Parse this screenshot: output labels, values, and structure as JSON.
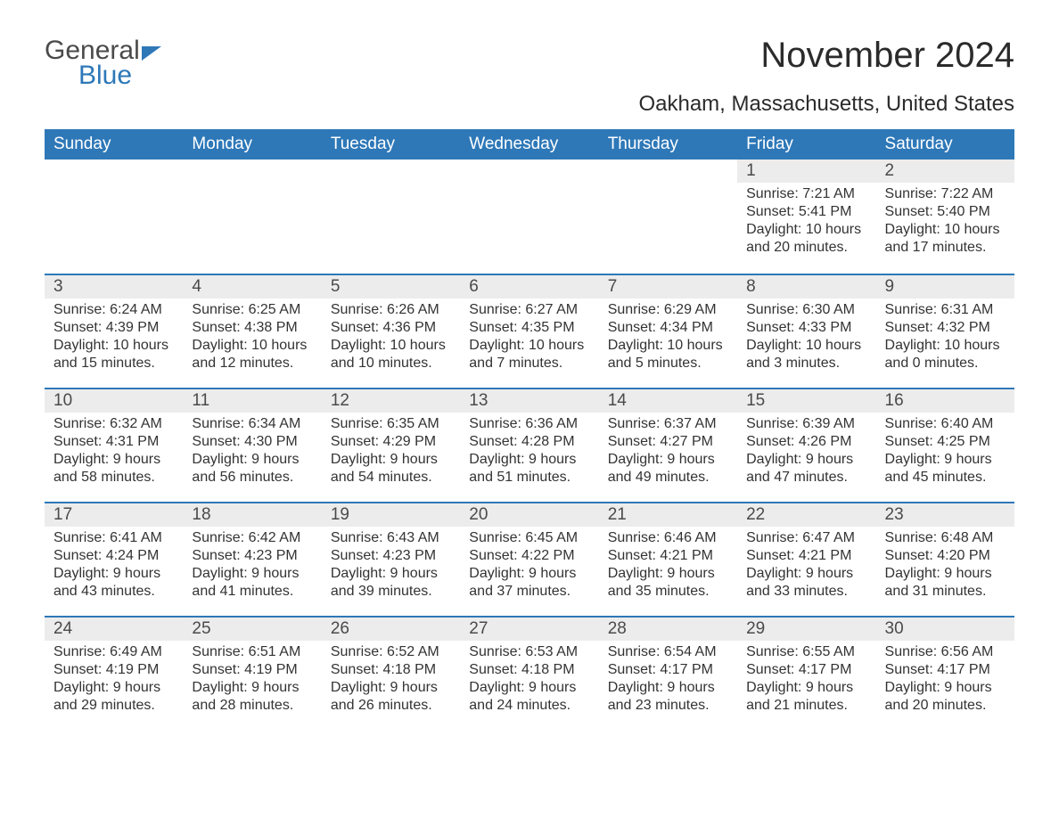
{
  "brand": {
    "word1": "General",
    "word2": "Blue"
  },
  "title": "November 2024",
  "location": "Oakham, Massachusetts, United States",
  "colors": {
    "accent": "#2e78b8",
    "header_text": "#ffffff",
    "daynum_bg": "#ececec",
    "body_text": "#333333",
    "page_bg": "#ffffff"
  },
  "weekdays": [
    "Sunday",
    "Monday",
    "Tuesday",
    "Wednesday",
    "Thursday",
    "Friday",
    "Saturday"
  ],
  "weeks": [
    [
      null,
      null,
      null,
      null,
      null,
      {
        "n": "1",
        "sunrise": "7:21 AM",
        "sunset": "5:41 PM",
        "daylight": "10 hours and 20 minutes."
      },
      {
        "n": "2",
        "sunrise": "7:22 AM",
        "sunset": "5:40 PM",
        "daylight": "10 hours and 17 minutes."
      }
    ],
    [
      {
        "n": "3",
        "sunrise": "6:24 AM",
        "sunset": "4:39 PM",
        "daylight": "10 hours and 15 minutes."
      },
      {
        "n": "4",
        "sunrise": "6:25 AM",
        "sunset": "4:38 PM",
        "daylight": "10 hours and 12 minutes."
      },
      {
        "n": "5",
        "sunrise": "6:26 AM",
        "sunset": "4:36 PM",
        "daylight": "10 hours and 10 minutes."
      },
      {
        "n": "6",
        "sunrise": "6:27 AM",
        "sunset": "4:35 PM",
        "daylight": "10 hours and 7 minutes."
      },
      {
        "n": "7",
        "sunrise": "6:29 AM",
        "sunset": "4:34 PM",
        "daylight": "10 hours and 5 minutes."
      },
      {
        "n": "8",
        "sunrise": "6:30 AM",
        "sunset": "4:33 PM",
        "daylight": "10 hours and 3 minutes."
      },
      {
        "n": "9",
        "sunrise": "6:31 AM",
        "sunset": "4:32 PM",
        "daylight": "10 hours and 0 minutes."
      }
    ],
    [
      {
        "n": "10",
        "sunrise": "6:32 AM",
        "sunset": "4:31 PM",
        "daylight": "9 hours and 58 minutes."
      },
      {
        "n": "11",
        "sunrise": "6:34 AM",
        "sunset": "4:30 PM",
        "daylight": "9 hours and 56 minutes."
      },
      {
        "n": "12",
        "sunrise": "6:35 AM",
        "sunset": "4:29 PM",
        "daylight": "9 hours and 54 minutes."
      },
      {
        "n": "13",
        "sunrise": "6:36 AM",
        "sunset": "4:28 PM",
        "daylight": "9 hours and 51 minutes."
      },
      {
        "n": "14",
        "sunrise": "6:37 AM",
        "sunset": "4:27 PM",
        "daylight": "9 hours and 49 minutes."
      },
      {
        "n": "15",
        "sunrise": "6:39 AM",
        "sunset": "4:26 PM",
        "daylight": "9 hours and 47 minutes."
      },
      {
        "n": "16",
        "sunrise": "6:40 AM",
        "sunset": "4:25 PM",
        "daylight": "9 hours and 45 minutes."
      }
    ],
    [
      {
        "n": "17",
        "sunrise": "6:41 AM",
        "sunset": "4:24 PM",
        "daylight": "9 hours and 43 minutes."
      },
      {
        "n": "18",
        "sunrise": "6:42 AM",
        "sunset": "4:23 PM",
        "daylight": "9 hours and 41 minutes."
      },
      {
        "n": "19",
        "sunrise": "6:43 AM",
        "sunset": "4:23 PM",
        "daylight": "9 hours and 39 minutes."
      },
      {
        "n": "20",
        "sunrise": "6:45 AM",
        "sunset": "4:22 PM",
        "daylight": "9 hours and 37 minutes."
      },
      {
        "n": "21",
        "sunrise": "6:46 AM",
        "sunset": "4:21 PM",
        "daylight": "9 hours and 35 minutes."
      },
      {
        "n": "22",
        "sunrise": "6:47 AM",
        "sunset": "4:21 PM",
        "daylight": "9 hours and 33 minutes."
      },
      {
        "n": "23",
        "sunrise": "6:48 AM",
        "sunset": "4:20 PM",
        "daylight": "9 hours and 31 minutes."
      }
    ],
    [
      {
        "n": "24",
        "sunrise": "6:49 AM",
        "sunset": "4:19 PM",
        "daylight": "9 hours and 29 minutes."
      },
      {
        "n": "25",
        "sunrise": "6:51 AM",
        "sunset": "4:19 PM",
        "daylight": "9 hours and 28 minutes."
      },
      {
        "n": "26",
        "sunrise": "6:52 AM",
        "sunset": "4:18 PM",
        "daylight": "9 hours and 26 minutes."
      },
      {
        "n": "27",
        "sunrise": "6:53 AM",
        "sunset": "4:18 PM",
        "daylight": "9 hours and 24 minutes."
      },
      {
        "n": "28",
        "sunrise": "6:54 AM",
        "sunset": "4:17 PM",
        "daylight": "9 hours and 23 minutes."
      },
      {
        "n": "29",
        "sunrise": "6:55 AM",
        "sunset": "4:17 PM",
        "daylight": "9 hours and 21 minutes."
      },
      {
        "n": "30",
        "sunrise": "6:56 AM",
        "sunset": "4:17 PM",
        "daylight": "9 hours and 20 minutes."
      }
    ]
  ],
  "labels": {
    "sunrise": "Sunrise: ",
    "sunset": "Sunset: ",
    "daylight": "Daylight: "
  }
}
